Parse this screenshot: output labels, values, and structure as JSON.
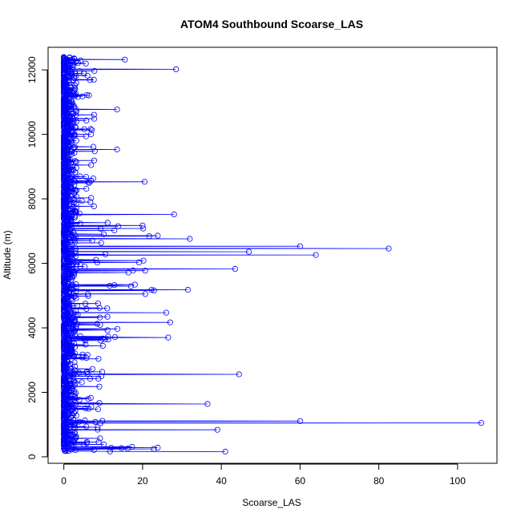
{
  "chart_data": {
    "type": "scatter",
    "title": "ATOM4 Southbound Scoarse_LAS",
    "xlabel": "Scoarse_LAS",
    "ylabel": "Altitude (m)",
    "xlim": [
      -4,
      110
    ],
    "ylim": [
      -200,
      12700
    ],
    "x_ticks": [
      0,
      20,
      40,
      60,
      80,
      100
    ],
    "y_ticks": [
      0,
      2000,
      4000,
      6000,
      8000,
      10000,
      12000
    ],
    "grid": false,
    "style": "line+points",
    "color": "#0000ff",
    "highlight_points": [
      {
        "x": 15.5,
        "y": 12320
      },
      {
        "x": 28.5,
        "y": 12020
      },
      {
        "x": 13.5,
        "y": 10770
      },
      {
        "x": 13.5,
        "y": 9530
      },
      {
        "x": 20.5,
        "y": 8530
      },
      {
        "x": 28.0,
        "y": 7520
      },
      {
        "x": 32.0,
        "y": 6760
      },
      {
        "x": 60.0,
        "y": 6530
      },
      {
        "x": 82.5,
        "y": 6460
      },
      {
        "x": 64.0,
        "y": 6260
      },
      {
        "x": 47.0,
        "y": 6360
      },
      {
        "x": 43.5,
        "y": 5830
      },
      {
        "x": 31.5,
        "y": 5180
      },
      {
        "x": 26.0,
        "y": 4470
      },
      {
        "x": 27.0,
        "y": 4170
      },
      {
        "x": 26.5,
        "y": 3700
      },
      {
        "x": 44.5,
        "y": 2560
      },
      {
        "x": 36.5,
        "y": 1640
      },
      {
        "x": 60.0,
        "y": 1110
      },
      {
        "x": 106.0,
        "y": 1050
      },
      {
        "x": 39.0,
        "y": 840
      },
      {
        "x": 41.0,
        "y": 160
      }
    ]
  }
}
